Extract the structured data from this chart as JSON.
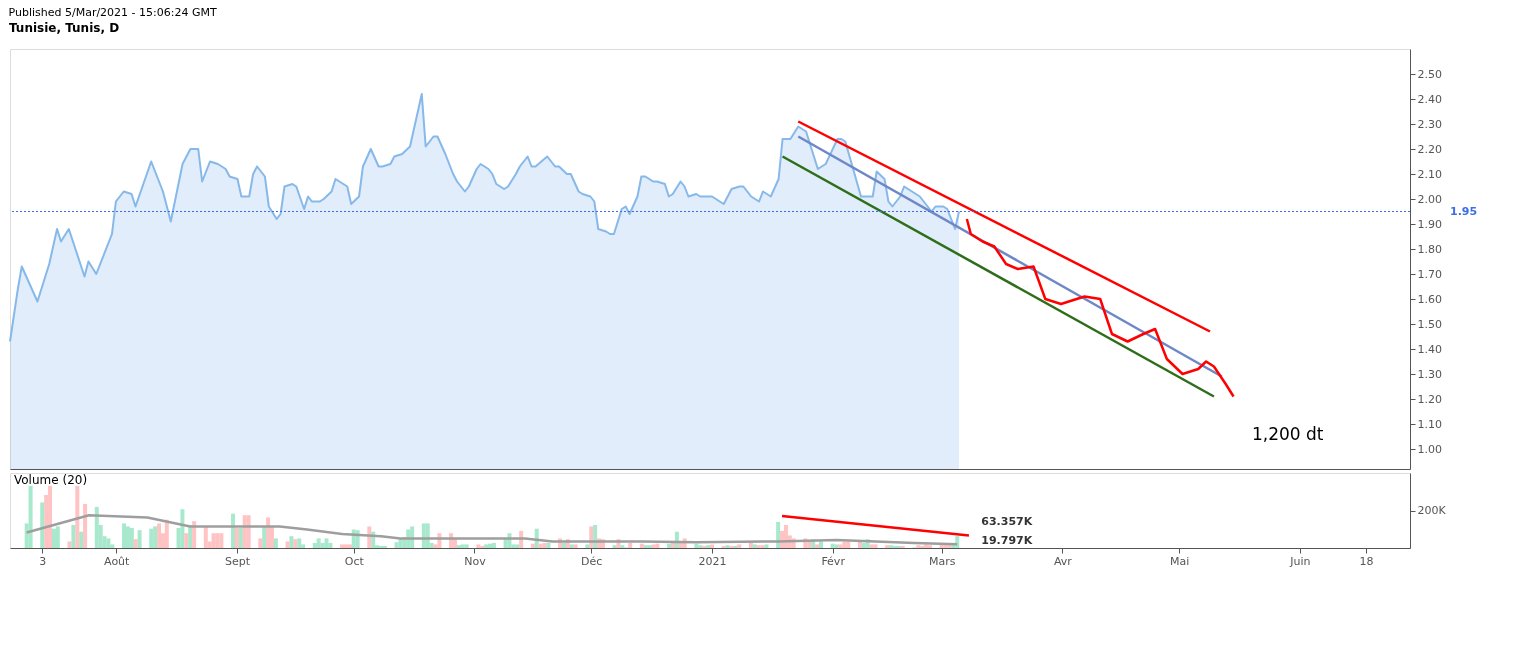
{
  "chart_data": [
    {
      "type": "area",
      "title": "Tunisie, Tunis, D",
      "annotations": [
        "Published 5/Mar/2021 - 15:06:24 GMT",
        "1,200 dt"
      ],
      "xlim": [
        "2020-07-06",
        "2021-06-28"
      ],
      "ylim": [
        0.92,
        2.6
      ],
      "yticks": [
        {
          "value": 1.0,
          "label": "1.00"
        },
        {
          "value": 1.1,
          "label": "1.10"
        },
        {
          "value": 1.2,
          "label": "1.20"
        },
        {
          "value": 1.3,
          "label": "1.30"
        },
        {
          "value": 1.4,
          "label": "1.40"
        },
        {
          "value": 1.5,
          "label": "1.50"
        },
        {
          "value": 1.6,
          "label": "1.60"
        },
        {
          "value": 1.7,
          "label": "1.70"
        },
        {
          "value": 1.8,
          "label": "1.80"
        },
        {
          "value": 1.9,
          "label": "1.90"
        },
        {
          "value": 2.0,
          "label": "2.00"
        },
        {
          "value": 2.1,
          "label": "2.10"
        },
        {
          "value": 2.2,
          "label": "2.20"
        },
        {
          "value": 2.3,
          "label": "2.30"
        },
        {
          "value": 2.4,
          "label": "2.40"
        },
        {
          "value": 2.5,
          "label": "2.50"
        }
      ],
      "tick_labels": "y",
      "ref_lines": [
        {
          "axis": "y",
          "value": 1.95,
          "label": "1.95",
          "color": "#3d6ee8",
          "line_style": "dotted"
        }
      ],
      "series": [
        {
          "color": "#86b9ea",
          "x": [
            "2020-07-06",
            "2020-07-08",
            "2020-07-09",
            "2020-07-13",
            "2020-07-16",
            "2020-07-18",
            "2020-07-19",
            "2020-07-21",
            "2020-07-25",
            "2020-07-26",
            "2020-07-28",
            "2020-08-01",
            "2020-08-02",
            "2020-08-04",
            "2020-08-06",
            "2020-08-07",
            "2020-08-11",
            "2020-08-14",
            "2020-08-16",
            "2020-08-19",
            "2020-08-21",
            "2020-08-23",
            "2020-08-24",
            "2020-08-26",
            "2020-08-28",
            "2020-08-30",
            "2020-08-31",
            "2020-09-02",
            "2020-09-03",
            "2020-09-05",
            "2020-09-06",
            "2020-09-07",
            "2020-09-09",
            "2020-09-10",
            "2020-09-12",
            "2020-09-13",
            "2020-09-14",
            "2020-09-16",
            "2020-09-17",
            "2020-09-19",
            "2020-09-20",
            "2020-09-21",
            "2020-09-23",
            "2020-09-24",
            "2020-09-26",
            "2020-09-27",
            "2020-09-28",
            "2020-09-30",
            "2020-10-01",
            "2020-10-03",
            "2020-10-04",
            "2020-10-06",
            "2020-10-08",
            "2020-10-09",
            "2020-10-11",
            "2020-10-12",
            "2020-10-14",
            "2020-10-16",
            "2020-10-17",
            "2020-10-19",
            "2020-10-20",
            "2020-10-22",
            "2020-10-23",
            "2020-10-25",
            "2020-10-27",
            "2020-10-28",
            "2020-10-30",
            "2020-10-31",
            "2020-11-02",
            "2020-11-03",
            "2020-11-05",
            "2020-11-06",
            "2020-11-07",
            "2020-11-09",
            "2020-11-10",
            "2020-11-12",
            "2020-11-13",
            "2020-11-15",
            "2020-11-16",
            "2020-11-17",
            "2020-11-20",
            "2020-11-22",
            "2020-11-23",
            "2020-11-25",
            "2020-11-26",
            "2020-11-28",
            "2020-11-29",
            "2020-12-01",
            "2020-12-02",
            "2020-12-03",
            "2020-12-05",
            "2020-12-06",
            "2020-12-07",
            "2020-12-09",
            "2020-12-10",
            "2020-12-11",
            "2020-12-13",
            "2020-12-14",
            "2020-12-15",
            "2020-12-17",
            "2020-12-18",
            "2020-12-20",
            "2020-12-21",
            "2020-12-22",
            "2020-12-24",
            "2020-12-25",
            "2020-12-26",
            "2020-12-28",
            "2020-12-29",
            "2020-12-30",
            "2021-01-01",
            "2021-01-04",
            "2021-01-06",
            "2021-01-08",
            "2021-01-09",
            "2021-01-11",
            "2021-01-13",
            "2021-01-14",
            "2021-01-16",
            "2021-01-18",
            "2021-01-19",
            "2021-01-21",
            "2021-01-23",
            "2021-01-25",
            "2021-01-28",
            "2021-01-30",
            "2021-02-02",
            "2021-02-03",
            "2021-02-04",
            "2021-02-08",
            "2021-02-11",
            "2021-02-12",
            "2021-02-14",
            "2021-02-15",
            "2021-02-16",
            "2021-02-18",
            "2021-02-19",
            "2021-02-20",
            "2021-02-22",
            "2021-02-23",
            "2021-02-26",
            "2021-02-27",
            "2021-03-01",
            "2021-03-02",
            "2021-03-04",
            "2021-03-05"
          ],
          "values": [
            1.43,
            1.64,
            1.73,
            1.59,
            1.74,
            1.88,
            1.83,
            1.88,
            1.69,
            1.75,
            1.7,
            1.86,
            1.99,
            2.03,
            2.02,
            1.97,
            2.15,
            2.03,
            1.91,
            2.14,
            2.2,
            2.2,
            2.07,
            2.15,
            2.14,
            2.12,
            2.09,
            2.08,
            2.01,
            2.01,
            2.1,
            2.13,
            2.09,
            1.97,
            1.92,
            1.94,
            2.05,
            2.06,
            2.05,
            1.96,
            2.01,
            1.99,
            1.99,
            2.0,
            2.03,
            2.08,
            2.07,
            2.05,
            1.98,
            2.01,
            2.13,
            2.2,
            2.13,
            2.13,
            2.14,
            2.17,
            2.18,
            2.21,
            2.28,
            2.42,
            2.21,
            2.25,
            2.25,
            2.18,
            2.1,
            2.07,
            2.03,
            2.05,
            2.12,
            2.14,
            2.12,
            2.1,
            2.06,
            2.04,
            2.05,
            2.1,
            2.13,
            2.17,
            2.13,
            2.13,
            2.17,
            2.13,
            2.13,
            2.1,
            2.1,
            2.03,
            2.02,
            2.01,
            1.99,
            1.88,
            1.87,
            1.86,
            1.86,
            1.96,
            1.97,
            1.94,
            2.01,
            2.09,
            2.09,
            2.07,
            2.07,
            2.06,
            2.01,
            2.02,
            2.07,
            2.05,
            2.01,
            2.02,
            2.01,
            2.01,
            2.01,
            1.98,
            2.04,
            2.05,
            2.05,
            2.01,
            1.99,
            2.03,
            2.01,
            2.08,
            2.24,
            2.24,
            2.29,
            2.27,
            2.12,
            2.14,
            2.24,
            2.24,
            2.23,
            2.01,
            2.01,
            2.11,
            2.08,
            1.99,
            1.97,
            2.01,
            2.05,
            2.04,
            2.02,
            2.01,
            1.95,
            1.97,
            1.97,
            1.96,
            1.88,
            1.95
          ]
        },
        {
          "type": "line",
          "color": "#ff0000",
          "x": [
            "2021-01-23",
            "2021-05-08"
          ],
          "values": [
            2.31,
            1.47
          ]
        },
        {
          "type": "line",
          "color": "#6e87c7",
          "x": [
            "2021-01-23",
            "2021-05-11"
          ],
          "values": [
            2.25,
            1.29
          ]
        },
        {
          "type": "line",
          "color": "#2e6e1a",
          "x": [
            "2021-01-19",
            "2021-05-09"
          ],
          "values": [
            2.17,
            1.21
          ]
        },
        {
          "type": "line",
          "color": "#ff0000",
          "x": [
            "2021-03-07",
            "2021-03-08",
            "2021-03-11",
            "2021-03-14",
            "2021-03-17",
            "2021-03-20",
            "2021-03-24",
            "2021-03-27",
            "2021-03-31",
            "2021-04-06",
            "2021-04-10",
            "2021-04-13",
            "2021-04-17",
            "2021-04-21",
            "2021-04-24",
            "2021-04-27",
            "2021-05-01",
            "2021-05-05",
            "2021-05-07",
            "2021-05-09",
            "2021-05-12",
            "2021-05-14"
          ],
          "values": [
            1.92,
            1.86,
            1.83,
            1.81,
            1.74,
            1.72,
            1.73,
            1.6,
            1.58,
            1.61,
            1.6,
            1.46,
            1.43,
            1.46,
            1.48,
            1.36,
            1.3,
            1.32,
            1.35,
            1.33,
            1.26,
            1.21
          ]
        }
      ]
    },
    {
      "type": "bar",
      "title": "Volume (20)",
      "xlim": [
        "2020-07-06",
        "2021-06-28"
      ],
      "xticks": [
        {
          "value": "2020-07-13",
          "label": "3"
        },
        {
          "value": "2020-08-01",
          "label": "Août"
        },
        {
          "value": "2020-09-01",
          "label": "Sept"
        },
        {
          "value": "2020-10-01",
          "label": "Oct"
        },
        {
          "value": "2020-11-01",
          "label": "Nov"
        },
        {
          "value": "2020-12-01",
          "label": "Déc"
        },
        {
          "value": "2021-01-01",
          "label": "2021"
        },
        {
          "value": "2021-02-01",
          "label": "Févr"
        },
        {
          "value": "2021-03-01",
          "label": "Mars"
        },
        {
          "value": "2021-04-01",
          "label": "Avr"
        },
        {
          "value": "2021-05-01",
          "label": "Mai"
        },
        {
          "value": "2021-06-01",
          "label": "Juin"
        },
        {
          "value": "2021-06-18",
          "label": "18"
        }
      ],
      "ylim": [
        0,
        400000
      ],
      "yticks": [
        {
          "value": 200000,
          "label": "200K"
        }
      ],
      "annotations": [
        {
          "text": "63.357K",
          "x": "2021-03-05",
          "y": 63357
        },
        {
          "text": "19.797K",
          "x": "2021-03-05",
          "y": 19797
        }
      ],
      "series": [
        {
          "x": [
            "2020-07-09",
            "2020-07-10",
            "2020-07-13",
            "2020-07-14",
            "2020-07-15",
            "2020-07-16",
            "2020-07-17",
            "2020-07-20",
            "2020-07-21",
            "2020-07-22",
            "2020-07-23",
            "2020-07-24",
            "2020-07-27",
            "2020-07-28",
            "2020-07-29",
            "2020-07-30",
            "2020-07-31",
            "2020-08-03",
            "2020-08-04",
            "2020-08-05",
            "2020-08-06",
            "2020-08-07",
            "2020-08-10",
            "2020-08-11",
            "2020-08-12",
            "2020-08-13",
            "2020-08-14",
            "2020-08-17",
            "2020-08-18",
            "2020-08-19",
            "2020-08-20",
            "2020-08-21",
            "2020-08-24",
            "2020-08-25",
            "2020-08-26",
            "2020-08-27",
            "2020-08-28",
            "2020-08-31",
            "2020-09-01",
            "2020-09-02",
            "2020-09-03",
            "2020-09-04",
            "2020-09-07",
            "2020-09-08",
            "2020-09-09",
            "2020-09-10",
            "2020-09-11",
            "2020-09-14",
            "2020-09-15",
            "2020-09-16",
            "2020-09-17",
            "2020-09-18",
            "2020-09-21",
            "2020-09-22",
            "2020-09-23",
            "2020-09-24",
            "2020-09-25",
            "2020-09-28",
            "2020-09-29",
            "2020-09-30",
            "2020-10-01",
            "2020-10-02",
            "2020-10-05",
            "2020-10-06",
            "2020-10-07",
            "2020-10-08",
            "2020-10-09",
            "2020-10-12",
            "2020-10-13",
            "2020-10-14",
            "2020-10-15",
            "2020-10-16",
            "2020-10-19",
            "2020-10-20",
            "2020-10-21",
            "2020-10-22",
            "2020-10-23",
            "2020-10-26",
            "2020-10-27",
            "2020-10-28",
            "2020-10-29",
            "2020-10-30",
            "2020-11-02",
            "2020-11-03",
            "2020-11-04",
            "2020-11-05",
            "2020-11-06",
            "2020-11-09",
            "2020-11-10",
            "2020-11-11",
            "2020-11-12",
            "2020-11-13",
            "2020-11-16",
            "2020-11-17",
            "2020-11-18",
            "2020-11-19",
            "2020-11-20",
            "2020-11-23",
            "2020-11-24",
            "2020-11-25",
            "2020-11-26",
            "2020-11-27",
            "2020-11-30",
            "2020-12-01",
            "2020-12-02",
            "2020-12-03",
            "2020-12-04",
            "2020-12-07",
            "2020-12-08",
            "2020-12-09",
            "2020-12-10",
            "2020-12-11",
            "2020-12-14",
            "2020-12-15",
            "2020-12-16",
            "2020-12-17",
            "2020-12-18",
            "2020-12-21",
            "2020-12-22",
            "2020-12-23",
            "2020-12-24",
            "2020-12-25",
            "2020-12-28",
            "2020-12-29",
            "2020-12-30",
            "2020-12-31",
            "2021-01-01",
            "2021-01-04",
            "2021-01-05",
            "2021-01-06",
            "2021-01-07",
            "2021-01-08",
            "2021-01-11",
            "2021-01-12",
            "2021-01-13",
            "2021-01-14",
            "2021-01-15",
            "2021-01-18",
            "2021-01-19",
            "2021-01-20",
            "2021-01-21",
            "2021-01-22",
            "2021-01-25",
            "2021-01-26",
            "2021-01-27",
            "2021-01-28",
            "2021-01-29",
            "2021-02-01",
            "2021-02-02",
            "2021-02-03",
            "2021-02-04",
            "2021-02-05",
            "2021-02-08",
            "2021-02-09",
            "2021-02-10",
            "2021-02-11",
            "2021-02-12",
            "2021-02-15",
            "2021-02-16",
            "2021-02-17",
            "2021-02-18",
            "2021-02-19",
            "2021-02-22",
            "2021-02-23",
            "2021-02-24",
            "2021-02-25",
            "2021-02-26",
            "2021-03-01",
            "2021-03-02",
            "2021-03-03",
            "2021-03-04",
            "2021-03-05"
          ],
          "values": [
            131000,
            331000,
            243000,
            283000,
            331000,
            103000,
            115000,
            35000,
            123000,
            331000,
            87000,
            235000,
            219000,
            123000,
            63000,
            51000,
            19000,
            131000,
            115000,
            107000,
            47000,
            95000,
            103000,
            115000,
            131000,
            79000,
            151000,
            107000,
            207000,
            79000,
            123000,
            143000,
            115000,
            35000,
            79000,
            79000,
            79000,
            183000,
            107000,
            107000,
            175000,
            175000,
            51000,
            115000,
            163000,
            115000,
            51000,
            35000,
            63000,
            47000,
            51000,
            19000,
            27000,
            51000,
            27000,
            51000,
            27000,
            19000,
            19000,
            19000,
            99000,
            95000,
            115000,
            87000,
            15000,
            11000,
            11000,
            31000,
            51000,
            59000,
            99000,
            115000,
            131000,
            131000,
            27000,
            19000,
            79000,
            79000,
            51000,
            15000,
            19000,
            19000,
            19000,
            11000,
            19000,
            23000,
            27000,
            51000,
            79000,
            19000,
            19000,
            91000,
            23000,
            103000,
            23000,
            27000,
            27000,
            51000,
            27000,
            47000,
            19000,
            19000,
            19000,
            115000,
            123000,
            51000,
            47000,
            15000,
            47000,
            15000,
            3000,
            27000,
            23000,
            15000,
            15000,
            19000,
            23000,
            23000,
            35000,
            87000,
            35000,
            51000,
            23000,
            15000,
            11000,
            15000,
            19000,
            11000,
            15000,
            11000,
            11000,
            19000,
            35000,
            19000,
            15000,
            15000,
            19000,
            139000,
            91000,
            123000,
            67000,
            51000,
            51000,
            35000,
            47000,
            19000,
            35000,
            23000,
            19000,
            19000,
            35000,
            35000,
            35000,
            27000,
            47000,
            19000,
            19000,
            15000,
            15000,
            11000,
            11000,
            11000,
            3000,
            15000,
            11000,
            19000,
            15000,
            19000,
            19000,
            19000,
            19000,
            63357
          ],
          "colors": [
            "#9fe5c6",
            "#9fe5c6",
            "#9fe5c6",
            "#ffbdbd",
            "#ffbdbd",
            "#9fe5c6",
            "#9fe5c6",
            "#ffbdbd",
            "#9fe5c6",
            "#ffbdbd",
            "#9fe5c6",
            "#ffbdbd",
            "#9fe5c6",
            "#9fe5c6",
            "#9fe5c6",
            "#9fe5c6",
            "#9fe5c6",
            "#9fe5c6",
            "#9fe5c6",
            "#9fe5c6",
            "#ffbdbd",
            "#9fe5c6",
            "#9fe5c6",
            "#9fe5c6",
            "#ffbdbd",
            "#ffbdbd",
            "#ffbdbd",
            "#9fe5c6",
            "#9fe5c6",
            "#ffbdbd",
            "#9fe5c6",
            "#ffbdbd",
            "#ffbdbd",
            "#ffbdbd",
            "#ffbdbd",
            "#ffbdbd",
            "#ffbdbd",
            "#9fe5c6",
            "#ffbdbd",
            "#9fe5c6",
            "#ffbdbd",
            "#ffbdbd",
            "#ffbdbd",
            "#9fe5c6",
            "#ffbdbd",
            "#ffbdbd",
            "#9fe5c6",
            "#ffbdbd",
            "#9fe5c6",
            "#ffbdbd",
            "#9fe5c6",
            "#9fe5c6",
            "#9fe5c6",
            "#9fe5c6",
            "#9fe5c6",
            "#9fe5c6",
            "#9fe5c6",
            "#ffbdbd",
            "#ffbdbd",
            "#ffbdbd",
            "#9fe5c6",
            "#9fe5c6",
            "#ffbdbd",
            "#9fe5c6",
            "#9fe5c6",
            "#9fe5c6",
            "#9fe5c6",
            "#9fe5c6",
            "#9fe5c6",
            "#9fe5c6",
            "#9fe5c6",
            "#9fe5c6",
            "#9fe5c6",
            "#9fe5c6",
            "#9fe5c6",
            "#ffbdbd",
            "#ffbdbd",
            "#ffbdbd",
            "#ffbdbd",
            "#9fe5c6",
            "#9fe5c6",
            "#9fe5c6",
            "#ffbdbd",
            "#ffbdbd",
            "#9fe5c6",
            "#9fe5c6",
            "#9fe5c6",
            "#9fe5c6",
            "#9fe5c6",
            "#9fe5c6",
            "#9fe5c6",
            "#ffbdbd",
            "#ffbdbd",
            "#9fe5c6",
            "#ffbdbd",
            "#ffbdbd",
            "#9fe5c6",
            "#ffbdbd",
            "#9fe5c6",
            "#ffbdbd",
            "#9fe5c6",
            "#ffbdbd",
            "#9fe5c6",
            "#ffbdbd",
            "#9fe5c6",
            "#ffbdbd",
            "#ffbdbd",
            "#9fe5c6",
            "#ffbdbd",
            "#9fe5c6",
            "#9fe5c6",
            "#ffbdbd",
            "#ffbdbd",
            "#9fe5c6",
            "#9fe5c6",
            "#ffbdbd",
            "#ffbdbd",
            "#9fe5c6",
            "#ffbdbd",
            "#9fe5c6",
            "#ffbdbd",
            "#ffbdbd",
            "#9fe5c6",
            "#9fe5c6",
            "#ffbdbd",
            "#9fe5c6",
            "#ffbdbd",
            "#ffbdbd",
            "#9fe5c6",
            "#ffbdbd",
            "#9fe5c6",
            "#ffbdbd",
            "#ffbdbd",
            "#9fe5c6",
            "#ffbdbd",
            "#ffbdbd",
            "#9fe5c6",
            "#9fe5c6",
            "#ffbdbd",
            "#ffbdbd",
            "#ffbdbd",
            "#ffbdbd",
            "#ffbdbd",
            "#ffbdbd",
            "#9fe5c6",
            "#ffbdbd",
            "#9fe5c6",
            "#9fe5c6",
            "#9fe5c6",
            "#ffbdbd",
            "#ffbdbd",
            "#ffbdbd",
            "#ffbdbd",
            "#9fe5c6",
            "#9fe5c6",
            "#ffbdbd",
            "#ffbdbd",
            "#ffbdbd",
            "#9fe5c6",
            "#9fe5c6",
            "#9fe5c6",
            "#ffbdbd",
            "#9fe5c6",
            "#ffbdbd",
            "#ffbdbd",
            "#ffbdbd",
            "#ffbdbd",
            "#ffbdbd",
            "#ffbdbd",
            "#ffbdbd",
            "#9fe5c6",
            "#9fe5c6"
          ]
        },
        {
          "type": "line",
          "color": "#9e9e9e",
          "x": [
            "2020-07-09",
            "2020-07-25",
            "2020-08-09",
            "2020-08-20",
            "2020-09-12",
            "2020-09-19",
            "2020-09-28",
            "2020-10-08",
            "2020-10-13",
            "2020-11-14",
            "2020-11-21",
            "2020-12-14",
            "2020-12-28",
            "2021-01-18",
            "2021-02-02",
            "2021-02-22",
            "2021-03-05"
          ],
          "values": [
            83000,
            175000,
            163000,
            115000,
            115000,
            99000,
            75000,
            63000,
            51000,
            51000,
            35000,
            35000,
            31000,
            35000,
            43000,
            27000,
            19797
          ]
        },
        {
          "type": "line",
          "color": "#ff0000",
          "x": [
            "2021-01-19",
            "2021-03-08"
          ],
          "values": [
            171000,
            67000
          ]
        }
      ]
    }
  ]
}
